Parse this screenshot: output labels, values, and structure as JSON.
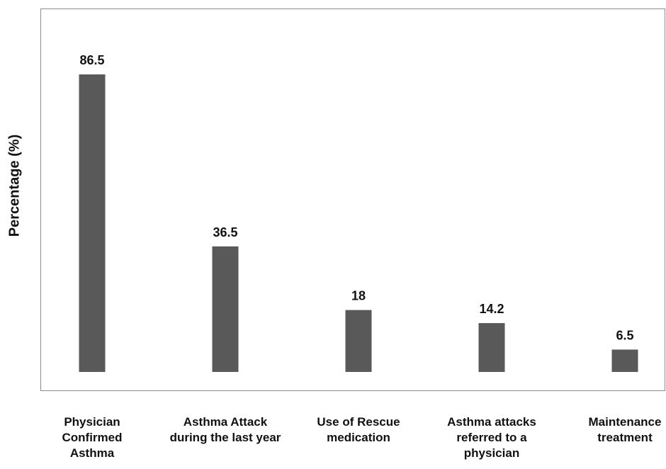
{
  "chart_data": {
    "type": "bar",
    "title": "",
    "xlabel": "",
    "ylabel": "Percentage (%)",
    "ylim": [
      0,
      100
    ],
    "grid": false,
    "legend": "none",
    "categories": [
      "Physician Confirmed Asthma",
      "Asthma Attack during the last year",
      "Use of Rescue medication",
      "Asthma attacks referred to a physician",
      "Maintenance treatment"
    ],
    "category_display": [
      "Physician\nConfirmed\nAsthma",
      "Asthma Attack\nduring the last year",
      "Use of Rescue\nmedication",
      "Asthma attacks\nreferred to a\nphysician",
      "Maintenance\ntreatment"
    ],
    "values": [
      86.5,
      36.5,
      18,
      14.2,
      6.5
    ],
    "value_labels": [
      "86.5",
      "36.5",
      "18",
      "14.2",
      "6.5"
    ],
    "bar_color": "#595959"
  }
}
